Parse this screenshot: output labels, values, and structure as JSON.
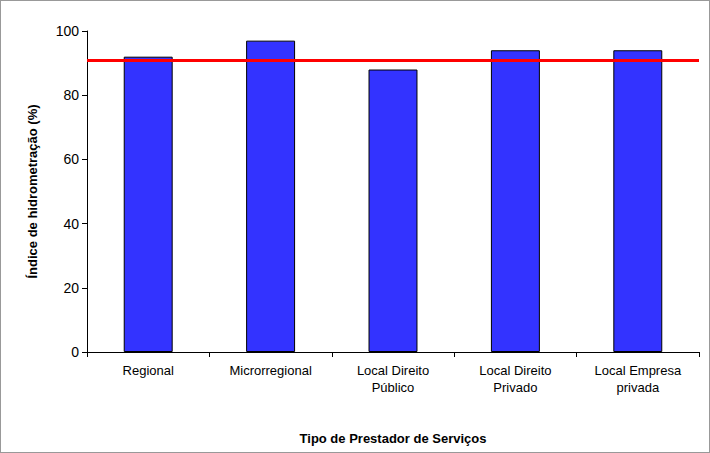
{
  "chart_data": {
    "type": "bar",
    "x_label": "Tipo de Prestador de Serviços",
    "y_label": "Índice de hidrometração (%)",
    "categories": [
      "Regional",
      "Microrregional",
      "Local Direito\nPúblico",
      "Local Direito\nPrivado",
      "Local Empresa\nprivada"
    ],
    "values": [
      92,
      97,
      88,
      94,
      94
    ],
    "color": "#3333ff",
    "reference_line": {
      "value": 91,
      "color": "#ff0000"
    },
    "ylim": [
      0,
      100
    ],
    "yticks": [
      0,
      20,
      40,
      60,
      80,
      100
    ],
    "grid": false
  }
}
